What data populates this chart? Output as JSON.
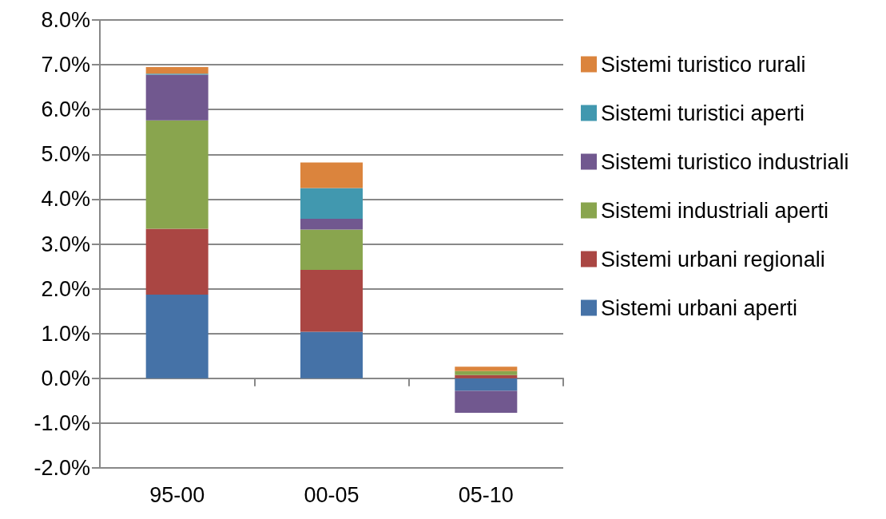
{
  "chart_data": {
    "type": "bar",
    "stacked": true,
    "categories": [
      "95-00",
      "00-05",
      "05-10"
    ],
    "series": [
      {
        "name": "Sistemi urbani aperti",
        "color": "#4572a7",
        "values": [
          1.87,
          1.04,
          -0.28
        ]
      },
      {
        "name": "Sistemi urbani regionali",
        "color": "#aa4643",
        "values": [
          1.47,
          1.38,
          0.07
        ]
      },
      {
        "name": "Sistemi industriali aperti",
        "color": "#89a54e",
        "values": [
          2.42,
          0.9,
          0.09
        ]
      },
      {
        "name": "Sistemi turistico industriali",
        "color": "#71588f",
        "values": [
          1.02,
          0.24,
          -0.49
        ]
      },
      {
        "name": "Sistemi turistici aperti",
        "color": "#4198af",
        "values": [
          0.02,
          0.69,
          null
        ]
      },
      {
        "name": "Sistemi turistico rurali",
        "color": "#db843d",
        "values": [
          0.15,
          0.57,
          0.1
        ]
      }
    ],
    "ylim": [
      -2,
      8
    ],
    "yticks": [
      {
        "value": -2,
        "label": "-2.0%"
      },
      {
        "value": -1,
        "label": "-1.0%"
      },
      {
        "value": 0,
        "label": "0.0%"
      },
      {
        "value": 1,
        "label": "1.0%"
      },
      {
        "value": 2,
        "label": "2.0%"
      },
      {
        "value": 3,
        "label": "3.0%"
      },
      {
        "value": 4,
        "label": "4.0%"
      },
      {
        "value": 5,
        "label": "5.0%"
      },
      {
        "value": 6,
        "label": "6.0%"
      },
      {
        "value": 7,
        "label": "7.0%"
      },
      {
        "value": 8,
        "label": "8.0%"
      }
    ],
    "grid": "y",
    "legend": "right"
  }
}
